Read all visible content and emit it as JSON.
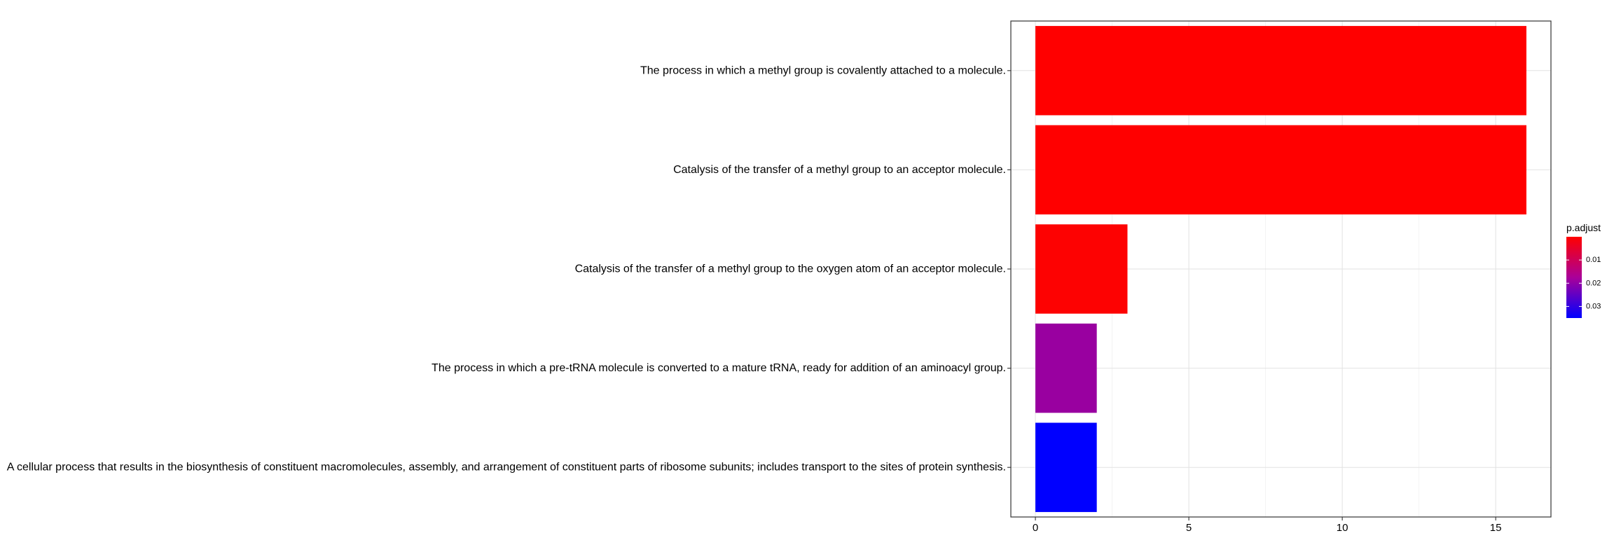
{
  "chart_data": {
    "type": "bar",
    "orientation": "horizontal",
    "title": "",
    "xlabel": "",
    "ylabel": "",
    "xlim": [
      -0.8,
      16.8
    ],
    "x_ticks": [
      0,
      5,
      10,
      15
    ],
    "grid": true,
    "categories": [
      "The process in which a methyl group is covalently attached to a molecule.",
      "Catalysis of the transfer of a methyl group to an acceptor molecule.",
      "Catalysis of the transfer of a methyl group to the oxygen atom of an acceptor molecule.",
      "The process in which a pre-tRNA molecule is converted to a mature tRNA, ready for addition of an aminoacyl group.",
      "A cellular process that results in the biosynthesis of constituent macromolecules, assembly, and arrangement of constituent parts of ribosome subunits; includes transport to the sites of protein synthesis."
    ],
    "values": [
      16,
      16,
      3,
      2,
      2
    ],
    "p_adjust": [
      0.001,
      0.001,
      0.002,
      0.022,
      0.035
    ],
    "bar_colors": [
      "#ff0000",
      "#ff0000",
      "#fd0202",
      "#9900a0",
      "#0000ff"
    ],
    "legend": {
      "title": "p.adjust",
      "position": "right",
      "range": [
        0.0,
        0.035
      ],
      "ticks": [
        "0.01",
        "0.02",
        "0.03"
      ],
      "tick_values": [
        0.01,
        0.02,
        0.03
      ],
      "color_low": "#ff0000",
      "color_high": "#0000ff"
    }
  }
}
